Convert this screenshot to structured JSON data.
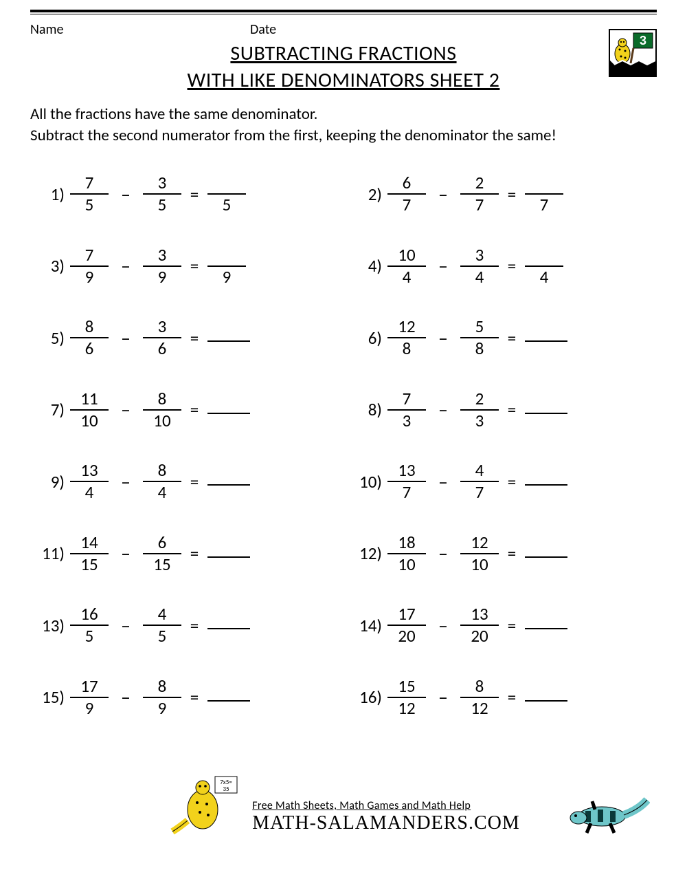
{
  "header": {
    "name_label": "Name",
    "date_label": "Date",
    "grade_badge": "3"
  },
  "title": {
    "line1": "SUBTRACTING FRACTIONS",
    "line2": "WITH LIKE DENOMINATORS SHEET 2"
  },
  "instructions": {
    "line1": "All the fractions have the same denominator.",
    "line2": "Subtract the second numerator from the first, keeping the denominator the same!"
  },
  "operator": "–",
  "equals": "=",
  "problems": [
    {
      "n": "1)",
      "a_num": "7",
      "a_den": "5",
      "b_num": "3",
      "b_den": "5",
      "ans_den": "5"
    },
    {
      "n": "2)",
      "a_num": "6",
      "a_den": "7",
      "b_num": "2",
      "b_den": "7",
      "ans_den": "7"
    },
    {
      "n": "3)",
      "a_num": "7",
      "a_den": "9",
      "b_num": "3",
      "b_den": "9",
      "ans_den": "9"
    },
    {
      "n": "4)",
      "a_num": "10",
      "a_den": "4",
      "b_num": "3",
      "b_den": "4",
      "ans_den": "4"
    },
    {
      "n": "5)",
      "a_num": "8",
      "a_den": "6",
      "b_num": "3",
      "b_den": "6",
      "ans_den": ""
    },
    {
      "n": "6)",
      "a_num": "12",
      "a_den": "8",
      "b_num": "5",
      "b_den": "8",
      "ans_den": ""
    },
    {
      "n": "7)",
      "a_num": "11",
      "a_den": "10",
      "b_num": "8",
      "b_den": "10",
      "ans_den": ""
    },
    {
      "n": "8)",
      "a_num": "7",
      "a_den": "3",
      "b_num": "2",
      "b_den": "3",
      "ans_den": ""
    },
    {
      "n": "9)",
      "a_num": "13",
      "a_den": "4",
      "b_num": "8",
      "b_den": "4",
      "ans_den": ""
    },
    {
      "n": "10)",
      "a_num": "13",
      "a_den": "7",
      "b_num": "4",
      "b_den": "7",
      "ans_den": ""
    },
    {
      "n": "11)",
      "a_num": "14",
      "a_den": "15",
      "b_num": "6",
      "b_den": "15",
      "ans_den": ""
    },
    {
      "n": "12)",
      "a_num": "18",
      "a_den": "10",
      "b_num": "12",
      "b_den": "10",
      "ans_den": ""
    },
    {
      "n": "13)",
      "a_num": "16",
      "a_den": "5",
      "b_num": "4",
      "b_den": "5",
      "ans_den": ""
    },
    {
      "n": "14)",
      "a_num": "17",
      "a_den": "20",
      "b_num": "13",
      "b_den": "20",
      "ans_den": ""
    },
    {
      "n": "15)",
      "a_num": "17",
      "a_den": "9",
      "b_num": "8",
      "b_den": "9",
      "ans_den": ""
    },
    {
      "n": "16)",
      "a_num": "15",
      "a_den": "12",
      "b_num": "8",
      "b_den": "12",
      "ans_den": ""
    }
  ],
  "footer": {
    "tagline": "Free Math Sheets, Math Games and Math Help",
    "site": "MATH-SALAMANDERS.COM"
  },
  "colors": {
    "text": "#000000",
    "background": "#ffffff",
    "salamander_yellow": "#f2d21b",
    "salamander_teal": "#6ec6c9",
    "chalkboard": "#0a6b2a"
  }
}
